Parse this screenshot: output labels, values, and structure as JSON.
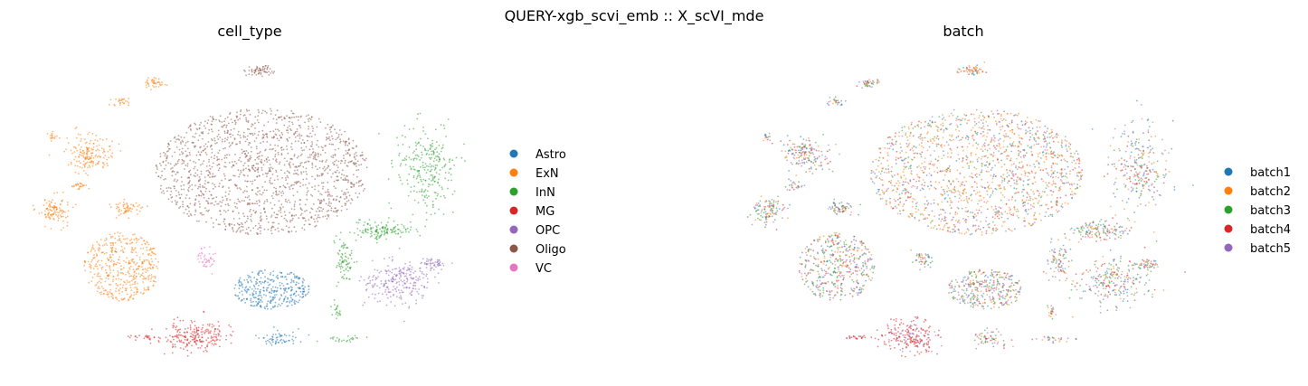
{
  "figure": {
    "suptitle": "QUERY-xgb_scvi_emb :: X_scVI_mde"
  },
  "chart_data": [
    {
      "type": "scatter",
      "title": "cell_type",
      "xlabel": "",
      "ylabel": "",
      "grid": false,
      "axes_visible": false,
      "legend_placement": "right",
      "series": [
        {
          "name": "Astro",
          "color": "#1f77b4"
        },
        {
          "name": "ExN",
          "color": "#ff7f0e"
        },
        {
          "name": "InN",
          "color": "#2ca02c"
        },
        {
          "name": "MG",
          "color": "#d62728"
        },
        {
          "name": "OPC",
          "color": "#9467bd"
        },
        {
          "name": "Oligo",
          "color": "#8c564b"
        },
        {
          "name": "VC",
          "color": "#e377c2"
        }
      ]
    },
    {
      "type": "scatter",
      "title": "batch",
      "xlabel": "",
      "ylabel": "",
      "grid": false,
      "axes_visible": false,
      "legend_placement": "right",
      "series": [
        {
          "name": "batch1",
          "color": "#1f77b4"
        },
        {
          "name": "batch2",
          "color": "#ff7f0e"
        },
        {
          "name": "batch3",
          "color": "#2ca02c"
        },
        {
          "name": "batch4",
          "color": "#d62728"
        },
        {
          "name": "batch5",
          "color": "#9467bd"
        }
      ]
    }
  ]
}
